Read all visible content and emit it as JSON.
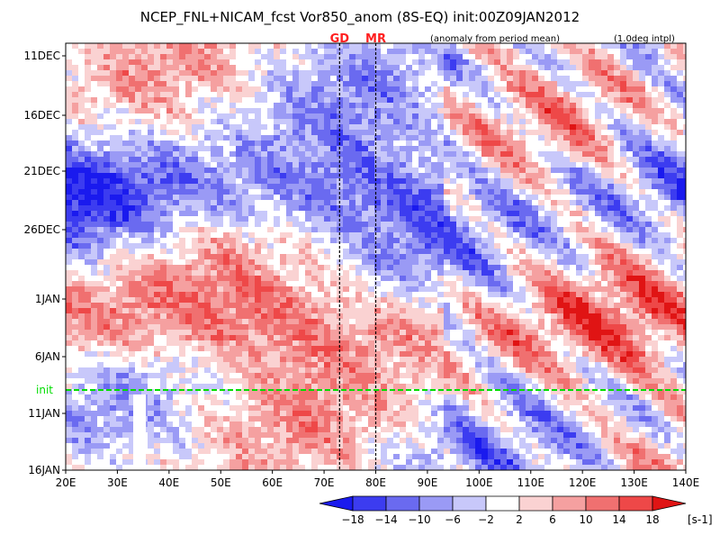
{
  "chart_data": {
    "type": "heatmap",
    "title": "NCEP_FNL+NICAM_fcst Vor850_anom (8S-EQ) init:00Z09JAN2012",
    "subtitle_left": "(anomaly from period mean)",
    "subtitle_right": "(1.0deg intpl)",
    "x_ticks": [
      "20E",
      "30E",
      "40E",
      "50E",
      "60E",
      "70E",
      "80E",
      "90E",
      "100E",
      "110E",
      "120E",
      "130E",
      "140E"
    ],
    "x_range": [
      20,
      140
    ],
    "y_ticks": [
      "11DEC",
      "16DEC",
      "21DEC",
      "26DEC",
      "1JAN",
      "6JAN",
      "11JAN",
      "16JAN"
    ],
    "init_label": "init",
    "init_color": "#00dd00",
    "markers": [
      {
        "label": "GD",
        "lon": 73,
        "color": "#ff2020"
      },
      {
        "label": "MR",
        "lon": 80,
        "color": "#ff2020"
      }
    ],
    "colorbar": {
      "ticks": [
        "−18",
        "−14",
        "−10",
        "−6",
        "−2",
        "2",
        "6",
        "10",
        "14",
        "18"
      ],
      "unit": "[s-1]",
      "colors": [
        "#1a1aee",
        "#3c3cf0",
        "#6a6af0",
        "#9a9af5",
        "#c8c8fa",
        "#ffffff",
        "#fad2d2",
        "#f5a0a0",
        "#f07070",
        "#ee4848",
        "#e01414"
      ]
    }
  }
}
